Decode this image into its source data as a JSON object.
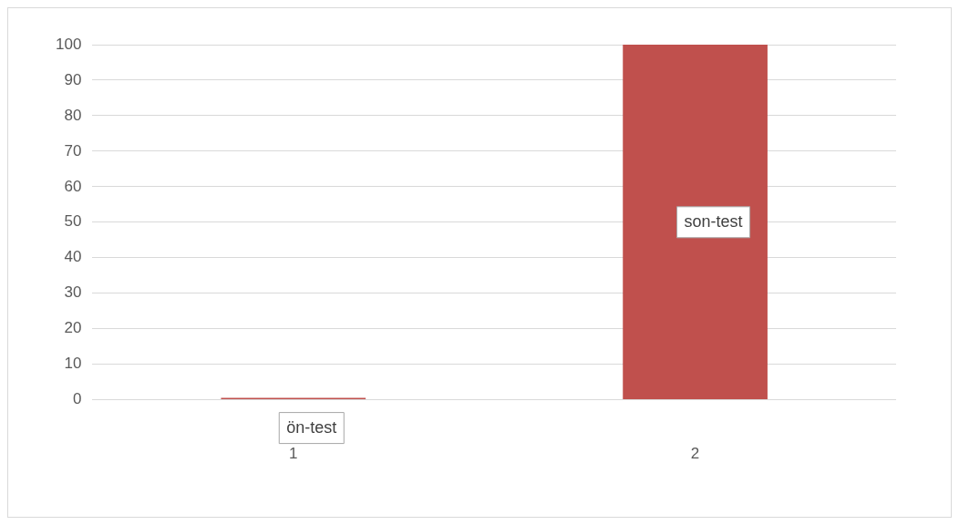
{
  "chart_data": {
    "type": "bar",
    "categories": [
      "1",
      "2"
    ],
    "values": [
      0,
      100
    ],
    "color": "#c0504d",
    "ylim": [
      0,
      100
    ],
    "yticks": [
      0,
      10,
      20,
      30,
      40,
      50,
      60,
      70,
      80,
      90,
      100
    ],
    "grid": "y",
    "legend": false,
    "annotations": [
      "ön-test",
      "son-test"
    ]
  }
}
